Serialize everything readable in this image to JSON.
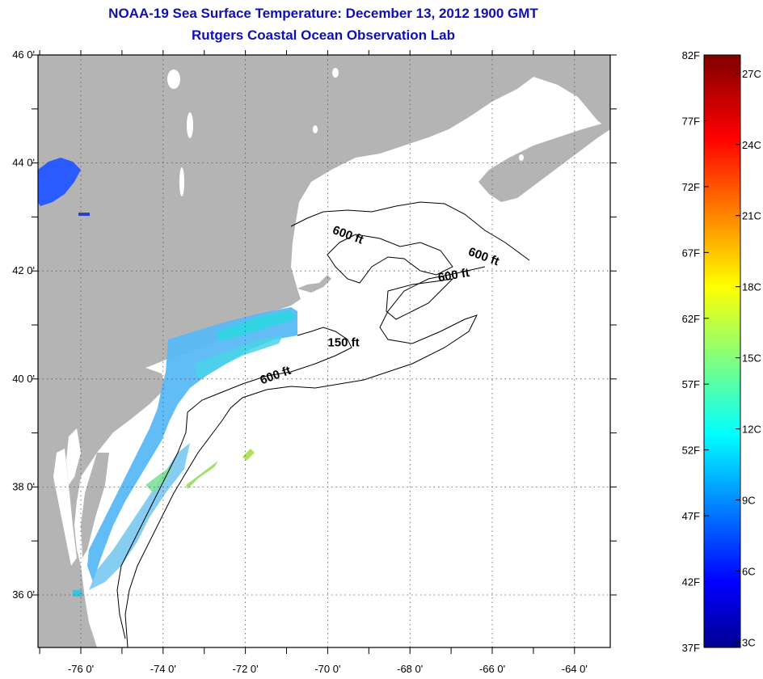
{
  "title": {
    "line1": "NOAA-19 Sea Surface Temperature:  December 13, 2012 1900 GMT",
    "line2": "Rutgers Coastal Ocean Observation Lab"
  },
  "map": {
    "lon_labels": [
      "-76 0'",
      "-74 0'",
      "-72 0'",
      "-70 0'",
      "-68 0'",
      "-66 0'",
      "-64 0'"
    ],
    "lat_labels": [
      "46 0'",
      "44 0'",
      "42 0'",
      "40 0'",
      "38 0'",
      "36 0'"
    ],
    "lon_values": [
      -76,
      -74,
      -72,
      -70,
      -68,
      -66,
      -64
    ],
    "lat_values": [
      46,
      44,
      42,
      40,
      38,
      36
    ],
    "isobath_labels": [
      {
        "text": "600 ft",
        "lon": -69.9,
        "lat": 42.7
      },
      {
        "text": "600 ft",
        "lon": -66.6,
        "lat": 42.3
      },
      {
        "text": "600 ft",
        "lon": -67.3,
        "lat": 41.8
      },
      {
        "text": "150 ft",
        "lon": -70.0,
        "lat": 40.6
      },
      {
        "text": "600 ft",
        "lon": -71.6,
        "lat": 39.9
      }
    ],
    "colors": {
      "land": "#b4b4b4",
      "ocean_no_data": "#ffffff",
      "title": "#1010b0"
    }
  },
  "colorbar": {
    "fahrenheit_labels": [
      "82F",
      "77F",
      "72F",
      "67F",
      "62F",
      "57F",
      "52F",
      "47F",
      "42F",
      "37F"
    ],
    "celsius_labels": [
      "27C",
      "24C",
      "21C",
      "18C",
      "15C",
      "12C",
      "9C",
      "6C",
      "3C"
    ],
    "fahrenheit_values": [
      82,
      77,
      72,
      67,
      62,
      57,
      52,
      47,
      42,
      37
    ],
    "celsius_values": [
      27,
      24,
      21,
      18,
      15,
      12,
      9,
      6,
      3
    ],
    "range_f": [
      37,
      82
    ]
  }
}
